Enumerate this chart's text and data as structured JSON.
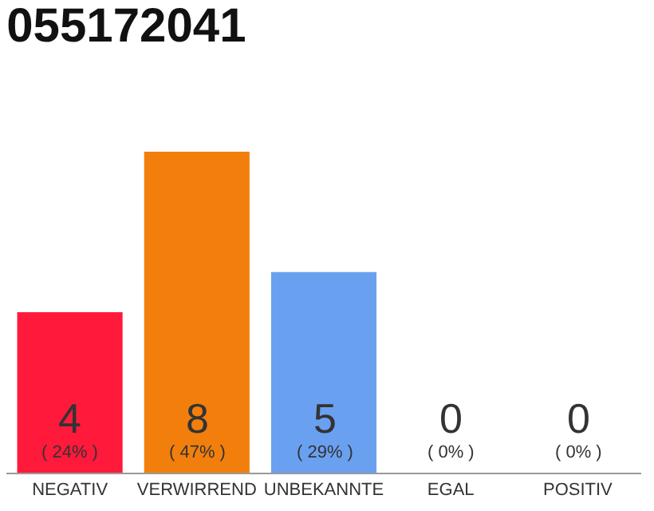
{
  "chart_data": {
    "type": "bar",
    "title": "055172041",
    "categories": [
      "NEGATIV",
      "VERWIRREND",
      "UNBEKANNTE",
      "EGAL",
      "POSITIV"
    ],
    "values": [
      4,
      8,
      5,
      0,
      0
    ],
    "colors": [
      "#ff1a3c",
      "#f27f0c",
      "#6aa0f0",
      "#cccccc",
      "#cccccc"
    ],
    "value_labels": [
      "4\n( 24% )",
      "8\n( 47% )",
      "5\n( 29% )",
      "0\n( 0% )",
      "0\n( 0% )"
    ],
    "ylim": [
      0,
      8
    ]
  }
}
